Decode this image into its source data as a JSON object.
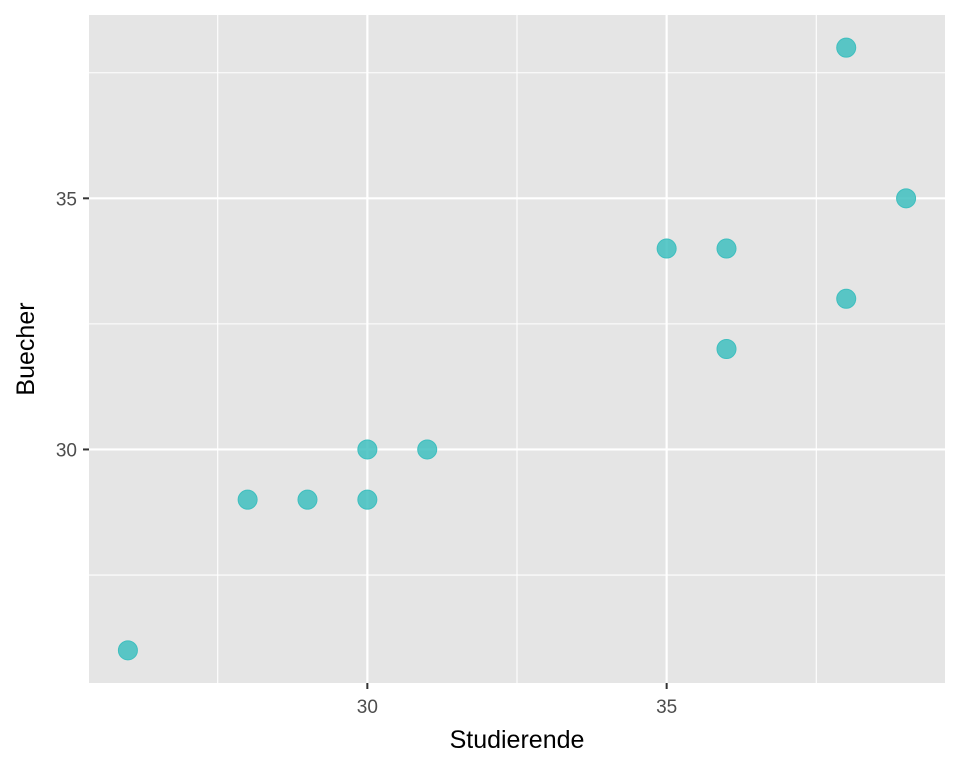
{
  "chart_data": {
    "type": "scatter",
    "title": "",
    "xlabel": "Studierende",
    "ylabel": "Buecher",
    "xlim": [
      25.35,
      39.65
    ],
    "ylim": [
      25.35,
      38.65
    ],
    "x_major_ticks": [
      30,
      35
    ],
    "x_minor_ticks": [
      27.5,
      32.5,
      37.5
    ],
    "y_major_ticks": [
      30,
      35
    ],
    "y_minor_ticks": [
      27.5,
      32.5,
      37.5
    ],
    "x_tick_labels": [
      "30",
      "35"
    ],
    "y_tick_labels": [
      "30",
      "35"
    ],
    "grid": true,
    "panel_background": "#e5e5e5",
    "point_color": "#3fbfbf",
    "points": [
      {
        "x": 26,
        "y": 26
      },
      {
        "x": 28,
        "y": 29
      },
      {
        "x": 29,
        "y": 29
      },
      {
        "x": 30,
        "y": 29
      },
      {
        "x": 30,
        "y": 30
      },
      {
        "x": 31,
        "y": 30
      },
      {
        "x": 35,
        "y": 34
      },
      {
        "x": 36,
        "y": 34
      },
      {
        "x": 36,
        "y": 32
      },
      {
        "x": 38,
        "y": 38
      },
      {
        "x": 38,
        "y": 33
      },
      {
        "x": 39,
        "y": 35
      }
    ]
  }
}
